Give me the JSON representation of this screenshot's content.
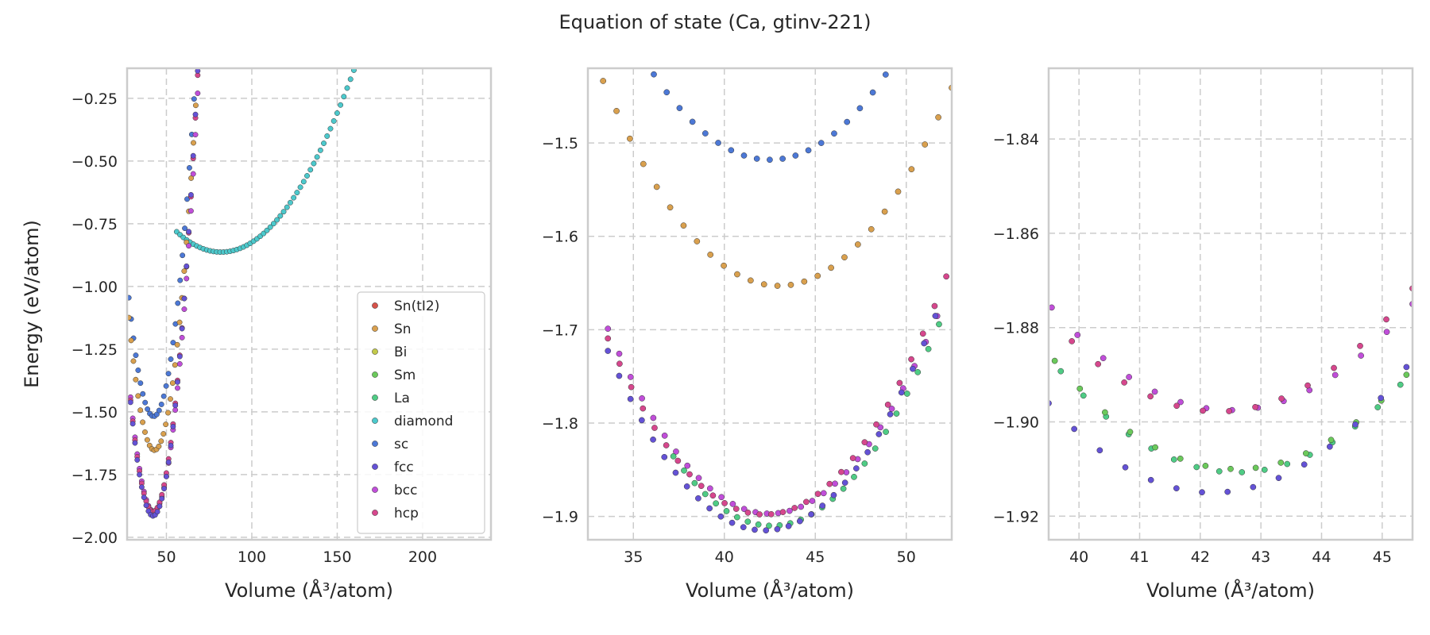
{
  "figure": {
    "title": "Equation of state (Ca, gtinv-221)"
  },
  "chart_data": [
    {
      "type": "scatter",
      "panel": "left",
      "xlabel": "Volume (Å³/atom)",
      "ylabel": "Energy (eV/atom)",
      "xlim": [
        27,
        240
      ],
      "ylim": [
        -2.01,
        -0.13
      ],
      "xticks": [
        50,
        100,
        150,
        200
      ],
      "yticks": [
        -2.0,
        -1.75,
        -1.5,
        -1.25,
        -1.0,
        -0.75,
        -0.5,
        -0.25
      ],
      "ytick_labels": [
        "−2.00",
        "−1.75",
        "−1.50",
        "−1.25",
        "−1.00",
        "−0.75",
        "−0.50",
        "−0.25"
      ],
      "grid": true,
      "legend": {
        "placement": "lower-right",
        "entries": [
          "Sn(tI2)",
          "Sn",
          "Bi",
          "Sm",
          "La",
          "diamond",
          "sc",
          "fcc",
          "bcc",
          "hcp"
        ]
      },
      "series": [
        {
          "name": "diamond",
          "curve": {
            "v0": 82,
            "e0": -0.863,
            "b": 0.00012,
            "vmin": 56,
            "vmax": 240,
            "n": 95
          }
        },
        {
          "name": "sc",
          "curve": {
            "v0": 42.5,
            "e0": -1.518,
            "b": 0.00225,
            "vmin": 28,
            "vmax": 129,
            "n": 75
          }
        },
        {
          "name": "Sn",
          "curve": {
            "v0": 43,
            "e0": -1.653,
            "b": 0.00235,
            "vmin": 28,
            "vmax": 128,
            "n": 75
          }
        },
        {
          "name": "bcc",
          "curve": {
            "v0": 42.5,
            "e0": -1.897,
            "b": 0.0025,
            "vmin": 29,
            "vmax": 126,
            "n": 75
          }
        },
        {
          "name": "hcp",
          "curve": {
            "v0": 42.2,
            "e0": -1.898,
            "b": 0.00255,
            "vmin": 29,
            "vmax": 126,
            "n": 75
          }
        },
        {
          "name": "fcc",
          "curve": {
            "v0": 42.2,
            "e0": -1.915,
            "b": 0.0026,
            "vmin": 29,
            "vmax": 126,
            "n": 75
          }
        }
      ]
    },
    {
      "type": "scatter",
      "panel": "middle",
      "xlabel": "Volume (Å³/atom)",
      "ylabel": "",
      "xlim": [
        32.5,
        52.5
      ],
      "ylim": [
        -1.925,
        -1.42
      ],
      "xticks": [
        35,
        40,
        45,
        50
      ],
      "yticks": [
        -1.9,
        -1.8,
        -1.7,
        -1.6,
        -1.5
      ],
      "ytick_labels": [
        "−1.9",
        "−1.8",
        "−1.7",
        "−1.6",
        "−1.5"
      ],
      "grid": true,
      "series": [
        {
          "name": "sc",
          "curve": {
            "v0": 42.5,
            "e0": -1.518,
            "b": 0.00225,
            "vmin": 34,
            "vmax": 51.7,
            "n": 26
          }
        },
        {
          "name": "Sn",
          "curve": {
            "v0": 43,
            "e0": -1.653,
            "b": 0.00235,
            "vmin": 32.6,
            "vmax": 52.5,
            "n": 28
          }
        },
        {
          "name": "bcc",
          "curve": {
            "v0": 42.5,
            "e0": -1.897,
            "b": 0.0025,
            "vmin": 33.6,
            "vmax": 51.7,
            "n": 30
          }
        },
        {
          "name": "hcp",
          "curve": {
            "v0": 42.2,
            "e0": -1.898,
            "b": 0.00255,
            "vmin": 33.6,
            "vmax": 52.2,
            "n": 30
          }
        },
        {
          "name": "La",
          "curve": {
            "v0": 42.6,
            "e0": -1.91,
            "b": 0.00255,
            "vmin": 37.2,
            "vmax": 51.8,
            "n": 26
          }
        },
        {
          "name": "fcc",
          "curve": {
            "v0": 42.2,
            "e0": -1.915,
            "b": 0.0026,
            "vmin": 33.6,
            "vmax": 51.6,
            "n": 30
          }
        }
      ]
    },
    {
      "type": "scatter",
      "panel": "right",
      "xlabel": "Volume (Å³/atom)",
      "ylabel": "",
      "xlim": [
        39.5,
        45.5
      ],
      "ylim": [
        -1.925,
        -1.825
      ],
      "xticks": [
        40,
        41,
        42,
        43,
        44,
        45
      ],
      "yticks": [
        -1.92,
        -1.9,
        -1.88,
        -1.86,
        -1.84
      ],
      "ytick_labels": [
        "−1.92",
        "−1.90",
        "−1.88",
        "−1.86",
        "−1.84"
      ],
      "grid": true,
      "series": [
        {
          "name": "bcc",
          "curve": {
            "v0": 42.5,
            "e0": -1.8975,
            "b": 0.0025,
            "vmin": 39.55,
            "vmax": 45.5,
            "n": 15
          }
        },
        {
          "name": "hcp",
          "curve": {
            "v0": 42.3,
            "e0": -1.8978,
            "b": 0.00255,
            "vmin": 39.45,
            "vmax": 45.5,
            "n": 15
          }
        },
        {
          "name": "La",
          "curve": {
            "v0": 42.6,
            "e0": -1.9107,
            "b": 0.00255,
            "vmin": 39.7,
            "vmax": 45.3,
            "n": 16
          }
        },
        {
          "name": "Sm",
          "curve": {
            "v0": 42.6,
            "e0": -1.91,
            "b": 0.00255,
            "vmin": 39.6,
            "vmax": 45.4,
            "n": 15
          }
        },
        {
          "name": "fcc",
          "curve": {
            "v0": 42.2,
            "e0": -1.915,
            "b": 0.0026,
            "vmin": 39.5,
            "vmax": 45.4,
            "n": 15
          }
        }
      ]
    }
  ],
  "colors": {
    "Sn(tI2)": "#d6524a",
    "Sn": "#d9a04e",
    "Bi": "#c2c94a",
    "Sm": "#6bc95b",
    "La": "#4fcc85",
    "diamond": "#4cc9cc",
    "sc": "#4c78d6",
    "fcc": "#6452d6",
    "bcc": "#c04ed9",
    "hcp": "#d6478d",
    "grid": "#cccccc",
    "frame": "#cccccc",
    "text": "#262626"
  }
}
